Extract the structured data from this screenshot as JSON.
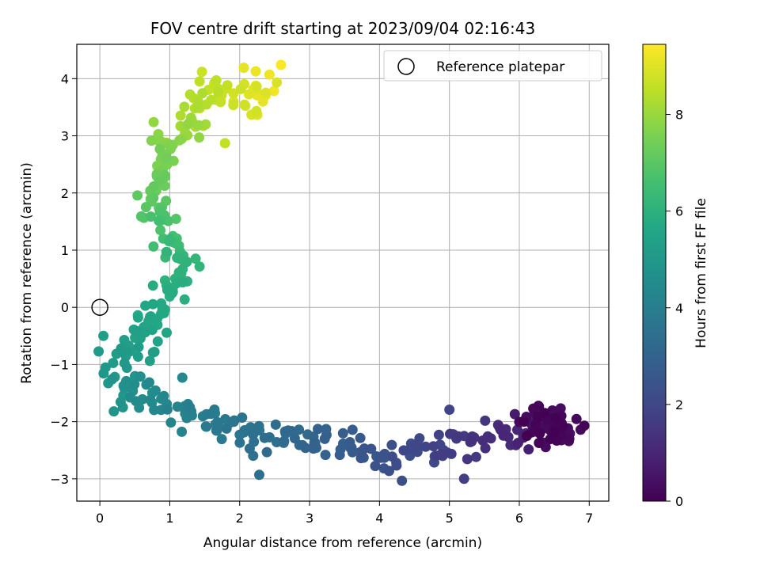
{
  "chart_data": {
    "type": "scatter",
    "title": "FOV centre drift starting at 2023/09/04 02:16:43",
    "xlabel": "Angular distance from reference (arcmin)",
    "ylabel": "Rotation from reference (arcmin)",
    "colorbar_label": "Hours from first FF file",
    "xlim": [
      -0.33,
      7.28
    ],
    "ylim": [
      -3.39,
      4.6
    ],
    "xticks": [
      0,
      1,
      2,
      3,
      4,
      5,
      6,
      7
    ],
    "yticks": [
      -3,
      -2,
      -1,
      0,
      1,
      2,
      3,
      4
    ],
    "colorbar_range": [
      0,
      9.45
    ],
    "colorbar_ticks": [
      0,
      2,
      4,
      6,
      8
    ],
    "colormap": "viridis",
    "grid": true,
    "legend": {
      "position": "top-right",
      "entries": [
        "Reference platepar"
      ]
    },
    "reference_point": {
      "x": 0,
      "y": 0
    },
    "anchors": [
      {
        "hours": 0.0,
        "x": 6.55,
        "y": -2.05
      },
      {
        "hours": 0.8,
        "x": 6.15,
        "y": -2.1
      },
      {
        "hours": 1.3,
        "x": 5.5,
        "y": -2.3
      },
      {
        "hours": 1.8,
        "x": 4.9,
        "y": -2.45
      },
      {
        "hours": 2.3,
        "x": 4.2,
        "y": -2.6
      },
      {
        "hours": 2.7,
        "x": 3.6,
        "y": -2.5
      },
      {
        "hours": 3.1,
        "x": 3.0,
        "y": -2.35
      },
      {
        "hours": 3.5,
        "x": 2.3,
        "y": -2.2
      },
      {
        "hours": 3.9,
        "x": 1.6,
        "y": -1.95
      },
      {
        "hours": 4.3,
        "x": 1.0,
        "y": -1.75
      },
      {
        "hours": 4.7,
        "x": 0.45,
        "y": -1.45
      },
      {
        "hours": 5.0,
        "x": 0.2,
        "y": -1.1
      },
      {
        "hours": 5.3,
        "x": 0.5,
        "y": -0.7
      },
      {
        "hours": 5.6,
        "x": 0.75,
        "y": -0.2
      },
      {
        "hours": 5.9,
        "x": 1.05,
        "y": 0.3
      },
      {
        "hours": 6.2,
        "x": 1.15,
        "y": 0.9
      },
      {
        "hours": 6.6,
        "x": 0.95,
        "y": 1.35
      },
      {
        "hours": 7.0,
        "x": 0.75,
        "y": 1.75
      },
      {
        "hours": 7.3,
        "x": 0.9,
        "y": 2.2
      },
      {
        "hours": 7.7,
        "x": 0.9,
        "y": 2.8
      },
      {
        "hours": 8.1,
        "x": 1.3,
        "y": 3.2
      },
      {
        "hours": 8.5,
        "x": 1.5,
        "y": 3.8
      },
      {
        "hours": 8.9,
        "x": 2.2,
        "y": 3.6
      },
      {
        "hours": 9.3,
        "x": 2.35,
        "y": 4.1
      }
    ],
    "labeled_points": [
      {
        "x": 0.77,
        "y": 3.24,
        "hours": 7.9
      },
      {
        "x": 1.46,
        "y": 4.12,
        "hours": 8.7
      },
      {
        "x": 2.06,
        "y": 4.19,
        "hours": 9.1
      },
      {
        "x": 2.59,
        "y": 4.24,
        "hours": 9.4
      },
      {
        "x": 1.79,
        "y": 2.87,
        "hours": 8.6
      },
      {
        "x": 0.05,
        "y": -0.5,
        "hours": 5.2
      },
      {
        "x": 0.2,
        "y": -1.82,
        "hours": 4.9
      },
      {
        "x": 1.18,
        "y": -1.23,
        "hours": 4.4
      },
      {
        "x": 5.0,
        "y": -1.79,
        "hours": 1.9
      },
      {
        "x": 5.21,
        "y": -3.0,
        "hours": 1.7
      },
      {
        "x": 2.28,
        "y": -2.93,
        "hours": 3.4
      },
      {
        "x": 6.93,
        "y": -2.07,
        "hours": 0.1
      }
    ]
  }
}
